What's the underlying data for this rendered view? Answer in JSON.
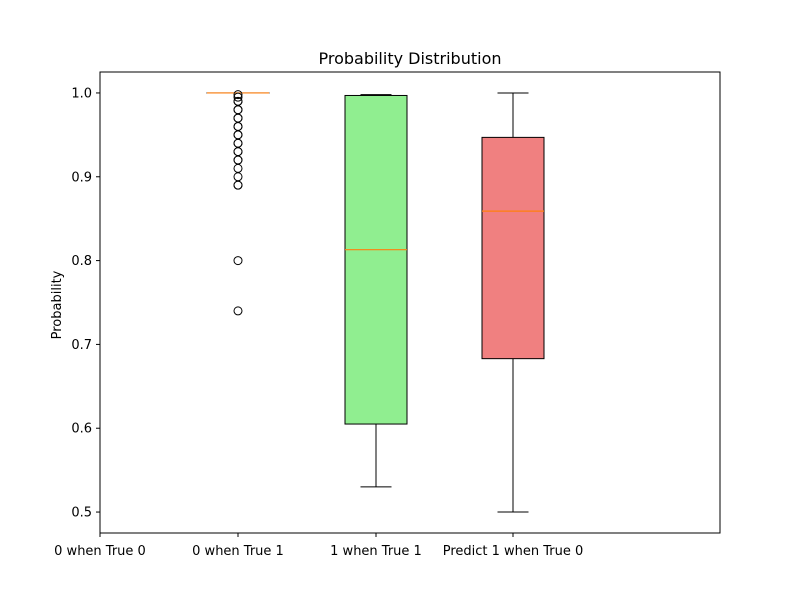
{
  "chart_data": {
    "type": "box",
    "title": "Probability Distribution",
    "xlabel": "",
    "ylabel": "Probability",
    "ylim": [
      0.475,
      1.025
    ],
    "yticks": [
      0.5,
      0.6,
      0.7,
      0.8,
      0.9,
      1.0
    ],
    "ytick_labels": [
      "0.5",
      "0.6",
      "0.7",
      "0.8",
      "0.9",
      "1.0"
    ],
    "categories": [
      "0 when True 0",
      "0 when True 1",
      "1 when True 1",
      "Predict 1 when True 0"
    ],
    "grid": false,
    "colors": {
      "box_0_when_true_1": "#ffffff",
      "box_1_when_true_1": "#90ee90",
      "box_predict_1_when_true_0": "#f08080",
      "median": "#ff7f0e",
      "outline": "#000000"
    },
    "boxes": [
      {
        "category": "0 when True 0",
        "empty": true
      },
      {
        "category": "0 when True 1",
        "whisker_low": 1.0,
        "q1": 1.0,
        "median": 1.0,
        "q3": 1.0,
        "whisker_high": 1.0,
        "fill": "#ffffff",
        "outliers": [
          0.74,
          0.8,
          0.89,
          0.89,
          0.9,
          0.91,
          0.92,
          0.92,
          0.93,
          0.93,
          0.94,
          0.94,
          0.95,
          0.95,
          0.96,
          0.96,
          0.97,
          0.97,
          0.98,
          0.98,
          0.99,
          0.99,
          0.995,
          0.998
        ]
      },
      {
        "category": "1 when True 1",
        "whisker_low": 0.53,
        "q1": 0.605,
        "median": 0.813,
        "q3": 0.997,
        "whisker_high": 0.998,
        "fill": "#90ee90",
        "outliers": []
      },
      {
        "category": "Predict 1 when True 0",
        "whisker_low": 0.5,
        "q1": 0.683,
        "median": 0.859,
        "q3": 0.947,
        "whisker_high": 1.0,
        "fill": "#f08080",
        "outliers": []
      }
    ]
  }
}
